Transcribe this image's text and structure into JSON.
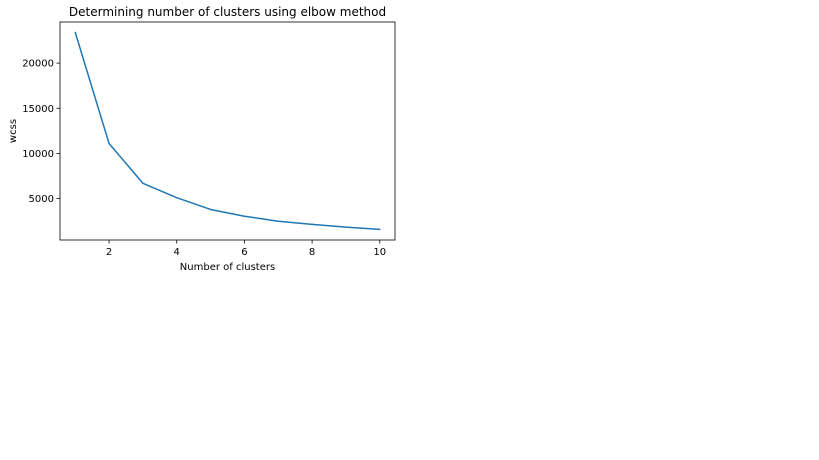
{
  "chart_data": {
    "type": "line",
    "title": "Determining number of clusters using elbow method",
    "xlabel": "Number of clusters",
    "ylabel": "wcss",
    "x": [
      1,
      2,
      3,
      4,
      5,
      6,
      7,
      8,
      9,
      10
    ],
    "series": [
      {
        "values": [
          23400,
          11100,
          6700,
          5100,
          3800,
          3050,
          2500,
          2150,
          1850,
          1600
        ],
        "color": "#1f77b4"
      }
    ],
    "xlim": [
      0.55,
      10.45
    ],
    "ylim": [
      420,
      24550
    ],
    "xticks": [
      2,
      4,
      6,
      8,
      10
    ],
    "xtick_labels": [
      "2",
      "4",
      "6",
      "8",
      "10"
    ],
    "yticks": [
      5000,
      10000,
      15000,
      20000
    ],
    "ytick_labels": [
      "5000",
      "10000",
      "15000",
      "20000"
    ],
    "grid": false,
    "legend": "none"
  }
}
